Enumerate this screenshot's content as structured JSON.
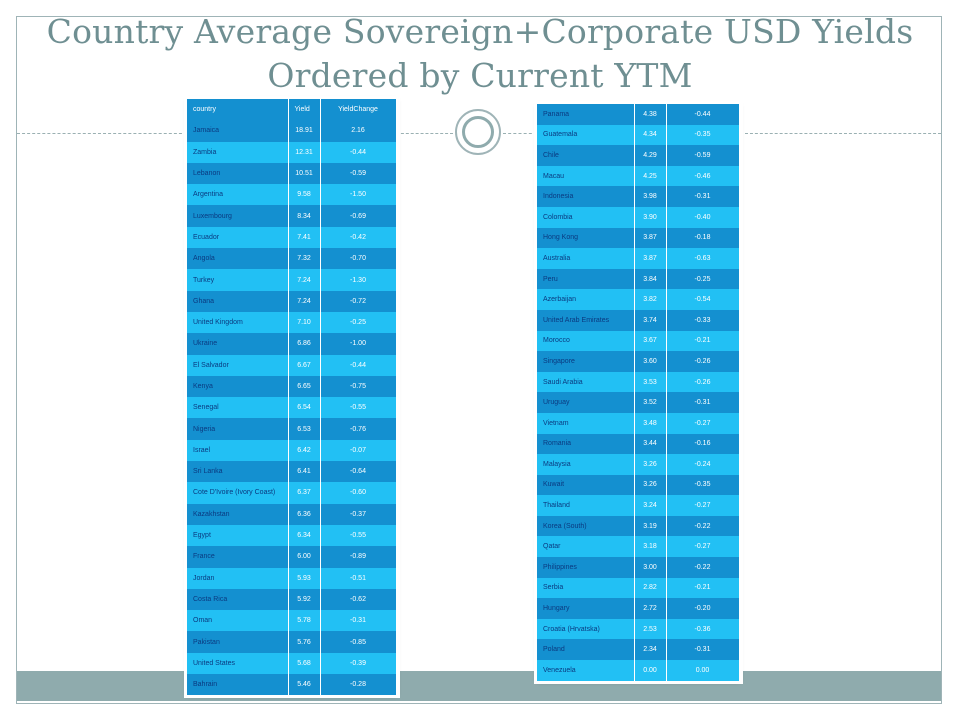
{
  "title": {
    "line1": "Country Average Sovereign+Corporate USD Yields",
    "line2": "Ordered by Current YTM"
  },
  "left_table": {
    "headers": [
      "country",
      "Yield",
      "YieldChange"
    ],
    "rows": [
      [
        "Jamaica",
        "18.91",
        "2.16"
      ],
      [
        "Zambia",
        "12.31",
        "-0.44"
      ],
      [
        "Lebanon",
        "10.51",
        "-0.59"
      ],
      [
        "Argentina",
        "9.58",
        "-1.50"
      ],
      [
        "Luxembourg",
        "8.34",
        "-0.69"
      ],
      [
        "Ecuador",
        "7.41",
        "-0.42"
      ],
      [
        "Angola",
        "7.32",
        "-0.70"
      ],
      [
        "Turkey",
        "7.24",
        "-1.30"
      ],
      [
        "Ghana",
        "7.24",
        "-0.72"
      ],
      [
        "United Kingdom",
        "7.10",
        "-0.25"
      ],
      [
        "Ukraine",
        "6.86",
        "-1.00"
      ],
      [
        "El Salvador",
        "6.67",
        "-0.44"
      ],
      [
        "Kenya",
        "6.65",
        "-0.75"
      ],
      [
        "Senegal",
        "6.54",
        "-0.55"
      ],
      [
        "Nigeria",
        "6.53",
        "-0.76"
      ],
      [
        "Israel",
        "6.42",
        "-0.07"
      ],
      [
        "Sri Lanka",
        "6.41",
        "-0.64"
      ],
      [
        "Cote D'Ivoire (Ivory Coast)",
        "6.37",
        "-0.60"
      ],
      [
        "Kazakhstan",
        "6.36",
        "-0.37"
      ],
      [
        "Egypt",
        "6.34",
        "-0.55"
      ],
      [
        "France",
        "6.00",
        "-0.89"
      ],
      [
        "Jordan",
        "5.93",
        "-0.51"
      ],
      [
        "Costa Rica",
        "5.92",
        "-0.62"
      ],
      [
        "Oman",
        "5.78",
        "-0.31"
      ],
      [
        "Pakistan",
        "5.76",
        "-0.85"
      ],
      [
        "United States",
        "5.68",
        "-0.39"
      ],
      [
        "Bahrain",
        "5.46",
        "-0.28"
      ]
    ]
  },
  "right_table": {
    "rows": [
      [
        "Panama",
        "4.38",
        "-0.44"
      ],
      [
        "Guatemala",
        "4.34",
        "-0.35"
      ],
      [
        "Chile",
        "4.29",
        "-0.59"
      ],
      [
        "Macau",
        "4.25",
        "-0.46"
      ],
      [
        "Indonesia",
        "3.98",
        "-0.31"
      ],
      [
        "Colombia",
        "3.90",
        "-0.40"
      ],
      [
        "Hong Kong",
        "3.87",
        "-0.18"
      ],
      [
        "Australia",
        "3.87",
        "-0.63"
      ],
      [
        "Peru",
        "3.84",
        "-0.25"
      ],
      [
        "Azerbaijan",
        "3.82",
        "-0.54"
      ],
      [
        "United Arab Emirates",
        "3.74",
        "-0.33"
      ],
      [
        "Morocco",
        "3.67",
        "-0.21"
      ],
      [
        "Singapore",
        "3.60",
        "-0.26"
      ],
      [
        "Saudi Arabia",
        "3.53",
        "-0.26"
      ],
      [
        "Uruguay",
        "3.52",
        "-0.31"
      ],
      [
        "Vietnam",
        "3.48",
        "-0.27"
      ],
      [
        "Romania",
        "3.44",
        "-0.16"
      ],
      [
        "Malaysia",
        "3.26",
        "-0.24"
      ],
      [
        "Kuwait",
        "3.26",
        "-0.35"
      ],
      [
        "Thailand",
        "3.24",
        "-0.27"
      ],
      [
        "Korea (South)",
        "3.19",
        "-0.22"
      ],
      [
        "Qatar",
        "3.18",
        "-0.27"
      ],
      [
        "Philippines",
        "3.00",
        "-0.22"
      ],
      [
        "Serbia",
        "2.82",
        "-0.21"
      ],
      [
        "Hungary",
        "2.72",
        "-0.20"
      ],
      [
        "Croatia (Hrvatska)",
        "2.53",
        "-0.36"
      ],
      [
        "Poland",
        "2.34",
        "-0.31"
      ],
      [
        "Venezuela",
        "0.00",
        "0.00"
      ]
    ]
  },
  "colors": {
    "row_dark": "#1490d0",
    "row_light": "#22c0f4",
    "title": "#6f8f92",
    "band": "#8fabad"
  }
}
